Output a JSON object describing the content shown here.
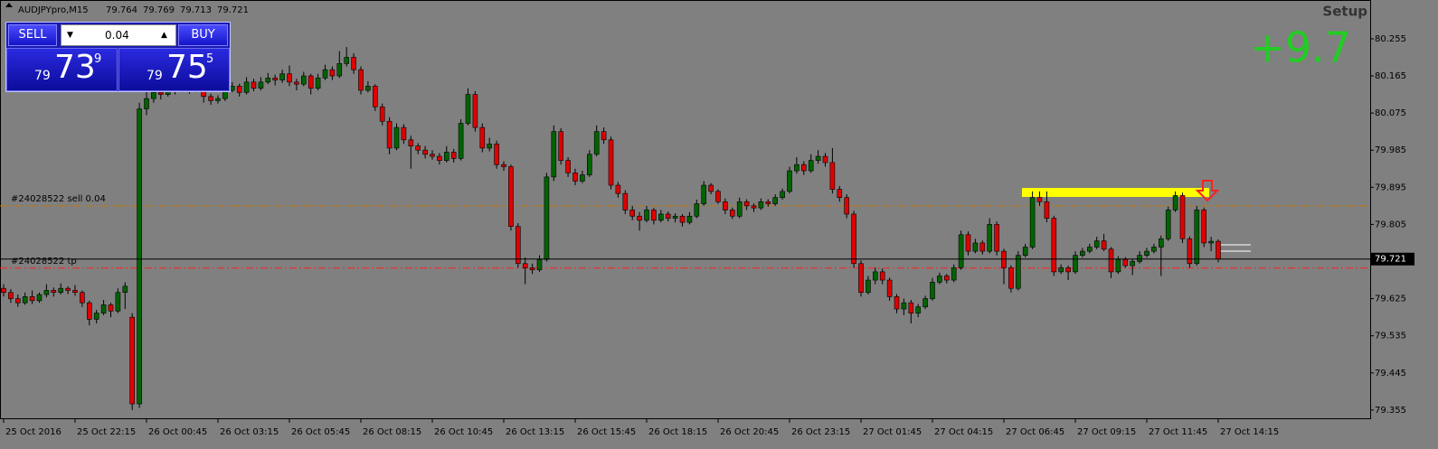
{
  "chart_data": {
    "type": "candlestick",
    "symbol": "AUDJPYpro,M15",
    "ylim": [
      79.335,
      80.349
    ],
    "yticks": [
      80.255,
      80.165,
      80.075,
      79.985,
      79.895,
      79.805,
      79.625,
      79.535,
      79.445,
      79.355
    ],
    "up_color": "#006400",
    "down_color": "#e00000",
    "x": [
      "25 Oct 2016",
      null,
      null,
      null,
      null,
      null,
      null,
      null,
      null,
      null,
      "25 Oct 22:15",
      null,
      null,
      null,
      null,
      null,
      null,
      null,
      null,
      null,
      "26 Oct 00:45",
      null,
      null,
      null,
      null,
      null,
      null,
      null,
      null,
      null,
      "26 Oct 03:15",
      null,
      null,
      null,
      null,
      null,
      null,
      null,
      null,
      null,
      "26 Oct 05:45",
      null,
      null,
      null,
      null,
      null,
      null,
      null,
      null,
      null,
      "26 Oct 08:15",
      null,
      null,
      null,
      null,
      null,
      null,
      null,
      null,
      null,
      "26 Oct 10:45",
      null,
      null,
      null,
      null,
      null,
      null,
      null,
      null,
      null,
      "26 Oct 13:15",
      null,
      null,
      null,
      null,
      null,
      null,
      null,
      null,
      null,
      "26 Oct 15:45",
      null,
      null,
      null,
      null,
      null,
      null,
      null,
      null,
      null,
      "26 Oct 18:15",
      null,
      null,
      null,
      null,
      null,
      null,
      null,
      null,
      null,
      "26 Oct 20:45",
      null,
      null,
      null,
      null,
      null,
      null,
      null,
      null,
      null,
      "26 Oct 23:15",
      null,
      null,
      null,
      null,
      null,
      null,
      null,
      null,
      null,
      "27 Oct 01:45",
      null,
      null,
      null,
      null,
      null,
      null,
      null,
      null,
      null,
      "27 Oct 04:15",
      null,
      null,
      null,
      null,
      null,
      null,
      null,
      null,
      null,
      "27 Oct 06:45",
      null,
      null,
      null,
      null,
      null,
      null,
      null,
      null,
      null,
      "27 Oct 09:15",
      null,
      null,
      null,
      null,
      null,
      null,
      null,
      null,
      null,
      "27 Oct 11:45",
      null,
      null,
      null,
      null,
      null,
      null,
      null,
      null,
      null,
      "27 Oct 14:15"
    ],
    "candles": [
      [
        79.65,
        79.66,
        79.63,
        79.64
      ],
      [
        79.64,
        79.648,
        79.615,
        79.625
      ],
      [
        79.625,
        79.635,
        79.605,
        79.615
      ],
      [
        79.615,
        79.64,
        79.61,
        79.63
      ],
      [
        79.63,
        79.645,
        79.612,
        79.62
      ],
      [
        79.62,
        79.64,
        79.615,
        79.635
      ],
      [
        79.635,
        79.66,
        79.628,
        79.645
      ],
      [
        79.645,
        79.652,
        79.63,
        79.64
      ],
      [
        79.64,
        79.662,
        79.635,
        79.65
      ],
      [
        79.65,
        79.655,
        79.636,
        79.645
      ],
      [
        79.645,
        79.658,
        79.632,
        79.64
      ],
      [
        79.64,
        79.645,
        79.605,
        79.615
      ],
      [
        79.615,
        79.62,
        79.56,
        79.575
      ],
      [
        79.575,
        79.598,
        79.565,
        79.59
      ],
      [
        79.59,
        79.622,
        79.585,
        79.61
      ],
      [
        79.61,
        79.615,
        79.58,
        79.595
      ],
      [
        79.595,
        79.65,
        79.59,
        79.64
      ],
      [
        79.64,
        79.665,
        79.6,
        79.655
      ],
      [
        79.58,
        79.59,
        79.355,
        79.37
      ],
      [
        79.37,
        80.1,
        79.36,
        80.085
      ],
      [
        80.085,
        80.13,
        80.07,
        80.11
      ],
      [
        80.11,
        80.135,
        80.1,
        80.125
      ],
      [
        80.125,
        80.132,
        80.108,
        80.12
      ],
      [
        80.12,
        80.145,
        80.115,
        80.135
      ],
      [
        80.135,
        80.142,
        80.12,
        80.13
      ],
      [
        80.13,
        80.152,
        80.125,
        80.14
      ],
      [
        80.14,
        80.148,
        80.122,
        80.13
      ],
      [
        80.13,
        80.155,
        80.125,
        80.145
      ],
      [
        80.145,
        80.15,
        80.1,
        80.115
      ],
      [
        80.115,
        80.122,
        80.095,
        80.105
      ],
      [
        80.105,
        80.118,
        80.098,
        80.11
      ],
      [
        80.11,
        80.138,
        80.104,
        80.13
      ],
      [
        80.13,
        80.15,
        80.125,
        80.14
      ],
      [
        80.14,
        80.146,
        80.115,
        80.125
      ],
      [
        80.125,
        80.162,
        80.12,
        80.15
      ],
      [
        80.15,
        80.158,
        80.128,
        80.135
      ],
      [
        80.135,
        80.162,
        80.13,
        80.15
      ],
      [
        80.15,
        80.172,
        80.145,
        80.16
      ],
      [
        80.16,
        80.168,
        80.142,
        80.155
      ],
      [
        80.155,
        80.18,
        80.148,
        80.17
      ],
      [
        80.17,
        80.19,
        80.14,
        80.15
      ],
      [
        80.15,
        80.158,
        80.13,
        80.145
      ],
      [
        80.145,
        80.175,
        80.14,
        80.165
      ],
      [
        80.165,
        80.17,
        80.12,
        80.135
      ],
      [
        80.135,
        80.17,
        80.13,
        80.16
      ],
      [
        80.16,
        80.192,
        80.155,
        80.18
      ],
      [
        80.18,
        80.188,
        80.155,
        80.165
      ],
      [
        80.165,
        80.225,
        80.16,
        80.195
      ],
      [
        80.195,
        80.235,
        80.188,
        80.21
      ],
      [
        80.21,
        80.22,
        80.17,
        80.18
      ],
      [
        80.18,
        80.188,
        80.12,
        80.13
      ],
      [
        80.13,
        80.152,
        80.125,
        80.14
      ],
      [
        80.14,
        80.145,
        80.08,
        80.09
      ],
      [
        80.09,
        80.098,
        80.045,
        80.055
      ],
      [
        80.055,
        80.065,
        79.975,
        79.99
      ],
      [
        79.99,
        80.05,
        79.985,
        80.04
      ],
      [
        80.04,
        80.048,
        80.0,
        80.01
      ],
      [
        80.01,
        80.02,
        79.94,
        79.995
      ],
      [
        79.995,
        80.002,
        79.975,
        79.985
      ],
      [
        79.985,
        79.995,
        79.965,
        79.975
      ],
      [
        79.975,
        79.985,
        79.962,
        79.97
      ],
      [
        79.97,
        79.978,
        79.95,
        79.96
      ],
      [
        79.96,
        79.995,
        79.955,
        79.98
      ],
      [
        79.98,
        79.988,
        79.955,
        79.965
      ],
      [
        79.965,
        80.06,
        79.96,
        80.05
      ],
      [
        80.05,
        80.135,
        80.045,
        80.12
      ],
      [
        80.12,
        80.128,
        80.03,
        80.04
      ],
      [
        80.04,
        80.05,
        79.98,
        79.99
      ],
      [
        79.99,
        80.015,
        79.982,
        80.0
      ],
      [
        80.0,
        80.008,
        79.94,
        79.95
      ],
      [
        79.95,
        79.958,
        79.935,
        79.945
      ],
      [
        79.945,
        79.95,
        79.79,
        79.8
      ],
      [
        79.8,
        79.808,
        79.7,
        79.71
      ],
      [
        79.71,
        79.725,
        79.66,
        79.7
      ],
      [
        79.7,
        79.71,
        79.685,
        79.695
      ],
      [
        79.695,
        79.73,
        79.69,
        79.72
      ],
      [
        79.72,
        79.93,
        79.715,
        79.92
      ],
      [
        79.92,
        80.045,
        79.91,
        80.03
      ],
      [
        80.03,
        80.038,
        79.95,
        79.96
      ],
      [
        79.96,
        79.968,
        79.92,
        79.93
      ],
      [
        79.93,
        79.94,
        79.9,
        79.91
      ],
      [
        79.91,
        79.935,
        79.905,
        79.925
      ],
      [
        79.925,
        79.985,
        79.92,
        79.975
      ],
      [
        79.975,
        80.045,
        79.97,
        80.03
      ],
      [
        80.03,
        80.04,
        80.0,
        80.01
      ],
      [
        80.01,
        80.018,
        79.89,
        79.9
      ],
      [
        79.9,
        79.908,
        79.87,
        79.88
      ],
      [
        79.88,
        79.888,
        79.83,
        79.84
      ],
      [
        79.84,
        79.85,
        79.815,
        79.825
      ],
      [
        79.825,
        79.835,
        79.79,
        79.815
      ],
      [
        79.815,
        79.85,
        79.81,
        79.84
      ],
      [
        79.84,
        79.845,
        79.805,
        79.815
      ],
      [
        79.815,
        79.84,
        79.81,
        79.83
      ],
      [
        79.83,
        79.836,
        79.812,
        79.82
      ],
      [
        79.82,
        79.832,
        79.81,
        79.825
      ],
      [
        79.825,
        79.83,
        79.8,
        79.81
      ],
      [
        79.81,
        79.835,
        79.805,
        79.825
      ],
      [
        79.825,
        79.865,
        79.82,
        79.855
      ],
      [
        79.855,
        79.91,
        79.85,
        79.9
      ],
      [
        79.9,
        79.905,
        79.878,
        79.885
      ],
      [
        79.885,
        79.89,
        79.855,
        79.86
      ],
      [
        79.86,
        79.868,
        79.83,
        79.84
      ],
      [
        79.84,
        79.846,
        79.818,
        79.825
      ],
      [
        79.825,
        79.87,
        79.82,
        79.86
      ],
      [
        79.86,
        79.866,
        79.84,
        79.85
      ],
      [
        79.85,
        79.856,
        79.835,
        79.845
      ],
      [
        79.845,
        79.868,
        79.84,
        79.86
      ],
      [
        79.86,
        79.866,
        79.848,
        79.855
      ],
      [
        79.855,
        79.878,
        79.85,
        79.87
      ],
      [
        79.87,
        79.892,
        79.865,
        79.885
      ],
      [
        79.885,
        79.945,
        79.88,
        79.935
      ],
      [
        79.935,
        79.968,
        79.928,
        79.95
      ],
      [
        79.95,
        79.958,
        79.925,
        79.935
      ],
      [
        79.935,
        79.975,
        79.93,
        79.96
      ],
      [
        79.96,
        79.985,
        79.952,
        79.97
      ],
      [
        79.97,
        79.978,
        79.945,
        79.955
      ],
      [
        79.955,
        79.99,
        79.88,
        79.89
      ],
      [
        79.89,
        79.898,
        79.86,
        79.87
      ],
      [
        79.87,
        79.878,
        79.82,
        79.83
      ],
      [
        79.83,
        79.838,
        79.7,
        79.71
      ],
      [
        79.71,
        79.718,
        79.63,
        79.64
      ],
      [
        79.64,
        79.68,
        79.635,
        79.67
      ],
      [
        79.67,
        79.7,
        79.66,
        79.69
      ],
      [
        79.69,
        79.698,
        79.66,
        79.67
      ],
      [
        79.67,
        79.676,
        79.62,
        79.63
      ],
      [
        79.63,
        79.636,
        79.59,
        79.6
      ],
      [
        79.6,
        79.625,
        79.585,
        79.615
      ],
      [
        79.615,
        79.622,
        79.565,
        79.59
      ],
      [
        79.59,
        79.612,
        79.58,
        79.605
      ],
      [
        79.605,
        79.632,
        79.6,
        79.625
      ],
      [
        79.625,
        79.675,
        79.62,
        79.665
      ],
      [
        79.665,
        79.688,
        79.66,
        79.68
      ],
      [
        79.68,
        79.685,
        79.662,
        79.67
      ],
      [
        79.67,
        79.708,
        79.665,
        79.7
      ],
      [
        79.7,
        79.79,
        79.695,
        79.78
      ],
      [
        79.78,
        79.788,
        79.73,
        79.74
      ],
      [
        79.74,
        79.77,
        79.735,
        79.76
      ],
      [
        79.76,
        79.766,
        79.732,
        79.74
      ],
      [
        79.74,
        79.82,
        79.735,
        79.805
      ],
      [
        79.805,
        79.812,
        79.73,
        79.74
      ],
      [
        79.74,
        79.746,
        79.66,
        79.7
      ],
      [
        79.7,
        79.706,
        79.64,
        79.65
      ],
      [
        79.65,
        79.74,
        79.645,
        79.73
      ],
      [
        79.73,
        79.758,
        79.725,
        79.75
      ],
      [
        79.75,
        79.885,
        79.745,
        79.87
      ],
      [
        79.87,
        79.885,
        79.85,
        79.86
      ],
      [
        79.86,
        79.885,
        79.81,
        79.82
      ],
      [
        79.82,
        79.826,
        79.68,
        79.69
      ],
      [
        79.69,
        79.708,
        79.685,
        79.7
      ],
      [
        79.7,
        79.705,
        79.67,
        79.69
      ],
      [
        79.69,
        79.74,
        79.685,
        79.73
      ],
      [
        79.73,
        79.748,
        79.725,
        79.74
      ],
      [
        79.74,
        79.758,
        79.735,
        79.75
      ],
      [
        79.75,
        79.775,
        79.745,
        79.765
      ],
      [
        79.765,
        79.782,
        79.74,
        79.745
      ],
      [
        79.745,
        79.75,
        79.675,
        79.69
      ],
      [
        79.69,
        79.728,
        79.685,
        79.72
      ],
      [
        79.72,
        79.726,
        79.7,
        79.705
      ],
      [
        79.705,
        79.722,
        79.682,
        79.715
      ],
      [
        79.715,
        79.74,
        79.71,
        79.73
      ],
      [
        79.73,
        79.748,
        79.725,
        79.74
      ],
      [
        79.74,
        79.758,
        79.735,
        79.75
      ],
      [
        79.75,
        79.778,
        79.68,
        79.77
      ],
      [
        79.77,
        79.848,
        79.765,
        79.84
      ],
      [
        79.84,
        79.885,
        79.835,
        79.875
      ],
      [
        79.875,
        79.882,
        79.76,
        79.77
      ],
      [
        79.77,
        79.776,
        79.7,
        79.71
      ],
      [
        79.71,
        79.85,
        79.705,
        79.84
      ],
      [
        79.84,
        79.846,
        79.75,
        79.76
      ],
      [
        79.76,
        79.775,
        79.74,
        79.764
      ],
      [
        79.764,
        79.769,
        79.713,
        79.721
      ]
    ],
    "orders": [
      {
        "label": "#24028522 sell 0.04",
        "price": 79.85,
        "color": "#c87800"
      },
      {
        "label": "#24028522 tp",
        "price": 79.699,
        "color": "#ff2020"
      }
    ],
    "signal": "+9.7",
    "setup_text": "Setup"
  },
  "trade_panel": {
    "sell_label": "SELL",
    "buy_label": "BUY",
    "lot": 0.04,
    "bid": {
      "big_prefix": "79",
      "pips": "73",
      "point": "9"
    },
    "ask": {
      "big_prefix": "79",
      "pips": "75",
      "point": "5"
    }
  }
}
